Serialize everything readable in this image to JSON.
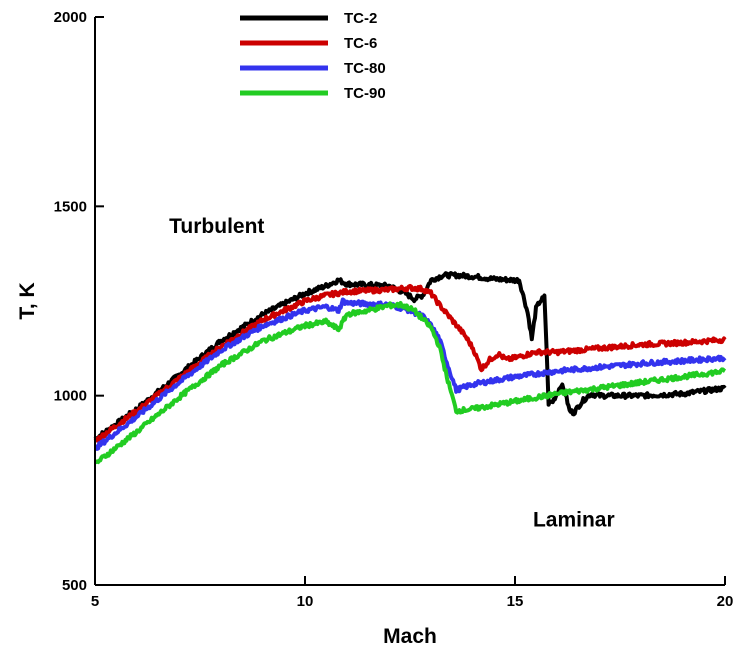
{
  "chart_data": {
    "type": "line",
    "xlabel": "Mach",
    "ylabel": "T, K",
    "xlim": [
      5,
      20
    ],
    "ylim": [
      500,
      2000
    ],
    "xticks": [
      5,
      10,
      15,
      20
    ],
    "yticks": [
      500,
      1000,
      1500,
      2000
    ],
    "grid": false,
    "legend_position": "top-center",
    "annotations": [
      {
        "text": "Turbulent",
        "x": 7.9,
        "y": 1430
      },
      {
        "text": "Laminar",
        "x": 16.4,
        "y": 655
      }
    ],
    "series": [
      {
        "name": "TC-2",
        "color": "#000000",
        "points": [
          [
            5,
            885
          ],
          [
            6,
            965
          ],
          [
            7,
            1055
          ],
          [
            8,
            1145
          ],
          [
            9,
            1215
          ],
          [
            10,
            1270
          ],
          [
            10.5,
            1290
          ],
          [
            10.8,
            1305
          ],
          [
            11,
            1295
          ],
          [
            12,
            1290
          ],
          [
            12.4,
            1270
          ],
          [
            12.6,
            1255
          ],
          [
            12.8,
            1265
          ],
          [
            13.0,
            1305
          ],
          [
            13.3,
            1318
          ],
          [
            13.6,
            1318
          ],
          [
            14,
            1315
          ],
          [
            14.5,
            1308
          ],
          [
            15,
            1305
          ],
          [
            15.1,
            1305
          ],
          [
            15.3,
            1220
          ],
          [
            15.4,
            1150
          ],
          [
            15.5,
            1230
          ],
          [
            15.6,
            1250
          ],
          [
            15.7,
            1260
          ],
          [
            15.75,
            1130
          ],
          [
            15.8,
            980
          ],
          [
            15.9,
            985
          ],
          [
            16.0,
            1005
          ],
          [
            16.1,
            1030
          ],
          [
            16.2,
            1005
          ],
          [
            16.3,
            960
          ],
          [
            16.4,
            955
          ],
          [
            16.6,
            985
          ],
          [
            16.8,
            1005
          ],
          [
            17,
            1000
          ],
          [
            18,
            1000
          ],
          [
            19,
            1005
          ],
          [
            20,
            1020
          ]
        ]
      },
      {
        "name": "TC-6",
        "color": "#cc0000",
        "points": [
          [
            5,
            880
          ],
          [
            6,
            960
          ],
          [
            7,
            1045
          ],
          [
            8,
            1130
          ],
          [
            9,
            1200
          ],
          [
            10,
            1250
          ],
          [
            10.5,
            1265
          ],
          [
            11,
            1275
          ],
          [
            12,
            1280
          ],
          [
            12.5,
            1285
          ],
          [
            12.8,
            1282
          ],
          [
            13.0,
            1270
          ],
          [
            13.2,
            1240
          ],
          [
            13.5,
            1200
          ],
          [
            13.8,
            1160
          ],
          [
            14,
            1125
          ],
          [
            14.2,
            1070
          ],
          [
            14.4,
            1095
          ],
          [
            14.6,
            1110
          ],
          [
            14.8,
            1095
          ],
          [
            15,
            1100
          ],
          [
            15.5,
            1115
          ],
          [
            16,
            1115
          ],
          [
            17,
            1125
          ],
          [
            18,
            1135
          ],
          [
            19,
            1140
          ],
          [
            20,
            1148
          ]
        ]
      },
      {
        "name": "TC-80",
        "color": "#3333ee",
        "points": [
          [
            5,
            860
          ],
          [
            6,
            945
          ],
          [
            7,
            1035
          ],
          [
            8,
            1120
          ],
          [
            9,
            1185
          ],
          [
            10,
            1225
          ],
          [
            10.5,
            1235
          ],
          [
            10.8,
            1225
          ],
          [
            10.9,
            1250
          ],
          [
            11,
            1245
          ],
          [
            12,
            1240
          ],
          [
            12.5,
            1225
          ],
          [
            12.8,
            1210
          ],
          [
            13,
            1185
          ],
          [
            13.2,
            1150
          ],
          [
            13.4,
            1080
          ],
          [
            13.6,
            1015
          ],
          [
            14,
            1030
          ],
          [
            15,
            1050
          ],
          [
            16,
            1065
          ],
          [
            17,
            1075
          ],
          [
            18,
            1085
          ],
          [
            19,
            1092
          ],
          [
            20,
            1100
          ]
        ]
      },
      {
        "name": "TC-90",
        "color": "#22cc22",
        "points": [
          [
            5,
            820
          ],
          [
            6,
            905
          ],
          [
            7,
            995
          ],
          [
            8,
            1080
          ],
          [
            9,
            1145
          ],
          [
            10,
            1185
          ],
          [
            10.5,
            1195
          ],
          [
            10.8,
            1175
          ],
          [
            11,
            1215
          ],
          [
            11.5,
            1225
          ],
          [
            12,
            1238
          ],
          [
            12.3,
            1240
          ],
          [
            12.6,
            1225
          ],
          [
            13,
            1180
          ],
          [
            13.2,
            1130
          ],
          [
            13.4,
            1040
          ],
          [
            13.6,
            960
          ],
          [
            14,
            965
          ],
          [
            15,
            985
          ],
          [
            16,
            1005
          ],
          [
            17,
            1020
          ],
          [
            18,
            1035
          ],
          [
            19,
            1050
          ],
          [
            20,
            1065
          ]
        ]
      }
    ]
  }
}
